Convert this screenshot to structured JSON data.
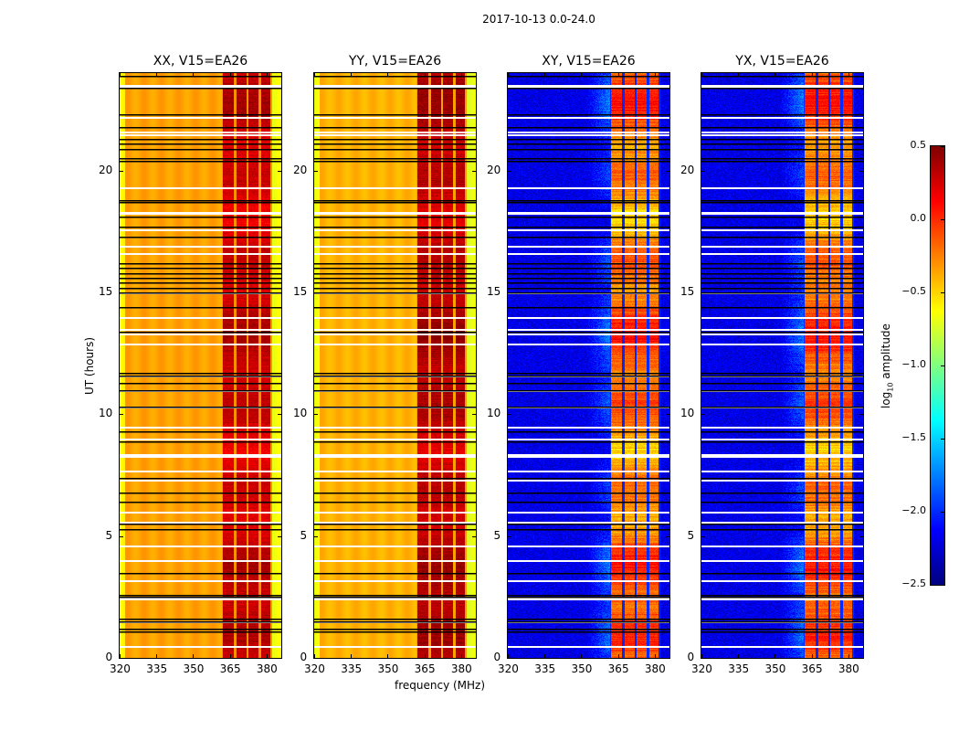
{
  "figure": {
    "suptitle": "2017-10-13 0.0-24.0",
    "xlabel": "frequency (MHz)",
    "ylabel": "UT (hours)"
  },
  "chart_data": {
    "type": "heatmap",
    "title": "2017-10-13 0.0-24.0",
    "xlabel": "frequency (MHz)",
    "ylabel": "UT (hours)",
    "xlim": [
      320,
      386
    ],
    "ylim": [
      0,
      24
    ],
    "xticks": [
      320,
      335,
      350,
      365,
      380
    ],
    "yticks": [
      0,
      5,
      10,
      15,
      20
    ],
    "panels": [
      {
        "title": "XX, V15=EA26",
        "polarization": "XX",
        "baseline": "V15=EA26",
        "show_yticks": true,
        "background_log10": -0.35,
        "band_log10": 0.15
      },
      {
        "title": "YY, V15=EA26",
        "polarization": "YY",
        "baseline": "V15=EA26",
        "show_yticks": true,
        "background_log10": -0.4,
        "band_log10": 0.2
      },
      {
        "title": "XY, V15=EA26",
        "polarization": "XY",
        "baseline": "V15=EA26",
        "show_yticks": true,
        "background_log10": -2.2,
        "band_log10": -0.5
      },
      {
        "title": "YX, V15=EA26",
        "polarization": "YX",
        "baseline": "V15=EA26",
        "show_yticks": true,
        "background_log10": -2.2,
        "band_log10": -0.5
      }
    ],
    "subbands_MHz": [
      [
        362,
        366.5
      ],
      [
        367.5,
        371.5
      ],
      [
        372.5,
        376.5
      ],
      [
        377.5,
        381.5
      ]
    ],
    "flagged_white_hours": [
      23.5,
      23.45,
      22.2,
      21.6,
      21.5,
      19.3,
      18.3,
      18.25,
      17.6,
      16.9,
      16.6,
      15.0,
      14.0,
      13.5,
      13.3,
      12.9,
      11.6,
      11.0,
      10.3,
      9.5,
      9.0,
      8.35,
      8.3,
      7.7,
      7.3,
      6.0,
      5.6,
      5.55,
      4.6,
      4.0,
      3.2,
      2.5,
      2.45,
      1.5,
      0.5
    ],
    "flagged_black_hours": [
      23.9,
      23.4,
      22.3,
      21.8,
      21.3,
      21.1,
      20.9,
      20.5,
      20.4,
      18.8,
      18.7,
      18.1,
      17.7,
      17.3,
      16.2,
      16.0,
      15.8,
      15.6,
      15.4,
      15.2,
      15.0,
      14.4,
      13.4,
      11.7,
      11.6,
      11.3,
      11.0,
      10.3,
      9.3,
      8.9,
      7.4,
      6.8,
      6.4,
      5.5,
      5.3,
      3.5,
      2.6,
      2.5,
      1.6,
      1.5,
      1.2,
      1.1
    ],
    "colorbar": {
      "label": "log₁₀ amplitude",
      "label_base": "log",
      "label_sub": "10",
      "label_rest": " amplitude",
      "colormap": "jet",
      "range": [
        -2.5,
        0.5
      ],
      "ticks": [
        0.5,
        0.0,
        -0.5,
        -1.0,
        -1.5,
        -2.0,
        -2.5
      ],
      "tick_labels": [
        "0.5",
        "0.0",
        "−0.5",
        "−1.0",
        "−1.5",
        "−2.0",
        "−2.5"
      ]
    }
  }
}
